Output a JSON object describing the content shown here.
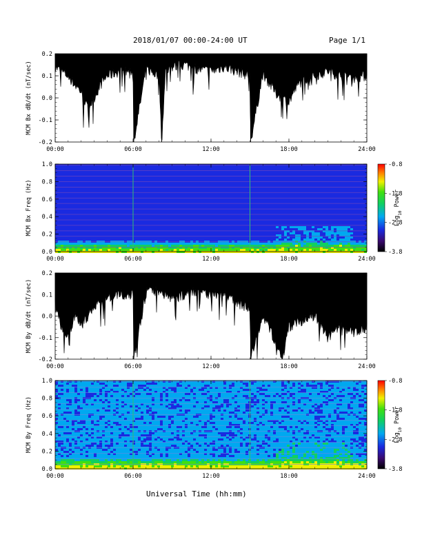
{
  "header": {
    "title": "2018/01/07  00:00-24:00 UT",
    "page": "Page 1/1"
  },
  "x_axis_title": "Universal Time (hh:mm)",
  "colorbar": {
    "label": "Log10 Power",
    "label_main": "Log",
    "label_sub": "10",
    "label_tail": " Power",
    "ticks": [
      "-0.8",
      "-1.8",
      "-2.8",
      "-3.8"
    ],
    "range": [
      -3.8,
      -0.8
    ]
  },
  "colors": {
    "spec_background": "#2a1a8a",
    "trace": "#000000"
  },
  "chart_data": [
    {
      "type": "line",
      "id": "bx_dbdt",
      "ylabel": "MCM Bx dB/dt (nT/sec)",
      "xlim": [
        0,
        24
      ],
      "ylim": [
        -0.2,
        0.2
      ],
      "x_ticks": [
        "00:00",
        "06:00",
        "12:00",
        "18:00",
        "24:00"
      ],
      "y_ticks": [
        "0.2",
        "0.1",
        "0.0",
        "-0.1",
        "-0.2"
      ],
      "series": [
        {
          "x": [
            0,
            1,
            1.5,
            2,
            2.5,
            3,
            3.5,
            4,
            5,
            6,
            6.05,
            7,
            8,
            8.2,
            8.5,
            9,
            10,
            11,
            12,
            13,
            14,
            15,
            15.05,
            16,
            17,
            18,
            18.5,
            19,
            20,
            21,
            22,
            23,
            24
          ],
          "y": [
            0.14,
            0.1,
            0.06,
            0.03,
            -0.05,
            0.0,
            0.06,
            0.1,
            0.12,
            0.12,
            -0.2,
            0.13,
            0.1,
            -0.2,
            0.12,
            0.14,
            0.15,
            0.13,
            0.12,
            0.14,
            0.12,
            0.1,
            -0.2,
            0.11,
            0.02,
            -0.02,
            0.04,
            0.08,
            0.1,
            0.12,
            0.1,
            0.09,
            0.1
          ]
        }
      ]
    },
    {
      "type": "heatmap",
      "id": "bx_spec",
      "ylabel": "MCM Bx Freq (Hz)",
      "xlim": [
        0,
        24
      ],
      "ylim": [
        0.0,
        1.0
      ],
      "x_ticks": [
        "00:00",
        "06:00",
        "12:00",
        "18:00",
        "24:00"
      ],
      "y_ticks": [
        "1.0",
        "0.8",
        "0.6",
        "0.4",
        "0.2",
        "0.0"
      ]
    },
    {
      "type": "line",
      "id": "by_dbdt",
      "ylabel": "MCM By dB/dt (nT/sec)",
      "xlim": [
        0,
        24
      ],
      "ylim": [
        -0.2,
        0.2
      ],
      "x_ticks": [
        "00:00",
        "06:00",
        "12:00",
        "18:00",
        "24:00"
      ],
      "y_ticks": [
        "0.2",
        "0.1",
        "0.0",
        "-0.1",
        "-0.2"
      ],
      "series": [
        {
          "x": [
            0,
            0.5,
            1,
            1.5,
            2,
            3,
            4,
            5,
            6,
            6.05,
            7,
            8,
            9,
            10,
            11,
            12,
            13,
            14,
            15,
            15.05,
            16,
            17,
            17.5,
            18,
            19,
            20,
            21,
            22,
            23,
            24
          ],
          "y": [
            0.05,
            -0.05,
            -0.1,
            0.0,
            -0.05,
            0.05,
            0.08,
            0.1,
            0.1,
            -0.2,
            0.11,
            0.12,
            0.08,
            0.1,
            0.12,
            0.1,
            0.1,
            0.06,
            0.04,
            -0.2,
            0.0,
            -0.12,
            -0.2,
            -0.05,
            -0.02,
            0.0,
            -0.1,
            -0.05,
            -0.08,
            -0.05
          ]
        }
      ]
    },
    {
      "type": "heatmap",
      "id": "by_spec",
      "ylabel": "MCM By Freq (Hz)",
      "xlim": [
        0,
        24
      ],
      "ylim": [
        0.0,
        1.0
      ],
      "x_ticks": [
        "00:00",
        "06:00",
        "12:00",
        "18:00",
        "24:00"
      ],
      "y_ticks": [
        "1.0",
        "0.8",
        "0.6",
        "0.4",
        "0.2",
        "0.0"
      ]
    }
  ]
}
